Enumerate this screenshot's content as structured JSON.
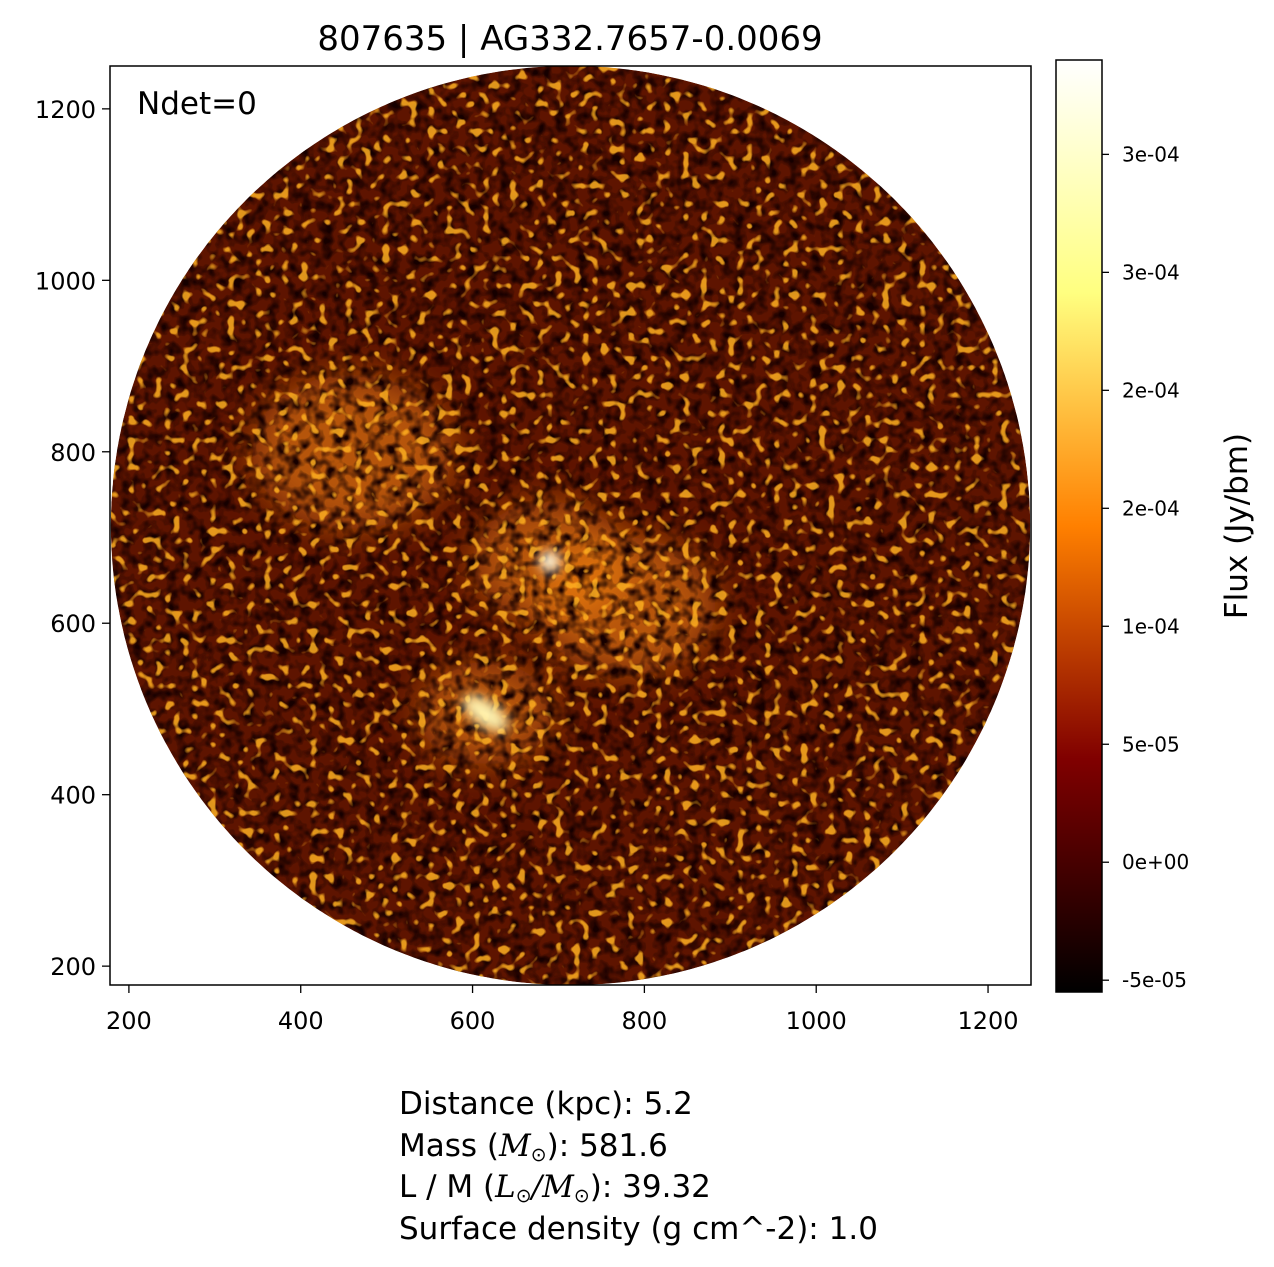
{
  "chart_data": {
    "type": "heatmap",
    "title": "807635 | AG332.7657-0.0069",
    "annotation": "Ndet=0",
    "x_ticks": [
      200,
      400,
      600,
      800,
      1000,
      1200
    ],
    "y_ticks": [
      200,
      400,
      600,
      800,
      1000,
      1200
    ],
    "xlim": [
      178,
      1250
    ],
    "ylim": [
      178,
      1250
    ],
    "colorbar": {
      "label": "Flux (Jy/bm)",
      "colormap": "afmhot",
      "range": [
        -5.5e-05,
        0.00034
      ],
      "ticks": [
        {
          "value": -5e-05,
          "label": "-5e-05"
        },
        {
          "value": 0.0,
          "label": "0e+00"
        },
        {
          "value": 5e-05,
          "label": "5e-05"
        },
        {
          "value": 0.0001,
          "label": "1e-04"
        },
        {
          "value": 0.00015,
          "label": "2e-04"
        },
        {
          "value": 0.0002,
          "label": "2e-04"
        },
        {
          "value": 0.00025,
          "label": "3e-04"
        },
        {
          "value": 0.0003,
          "label": "3e-04"
        }
      ]
    },
    "field": {
      "shape": "circle",
      "center": [
        714,
        714
      ],
      "radius": 535
    },
    "emission_features": [
      {
        "x": 690,
        "y": 672,
        "desc": "bright compact peak"
      },
      {
        "x": 615,
        "y": 495,
        "desc": "bright arc"
      },
      {
        "x": 460,
        "y": 800,
        "desc": "extended emission"
      },
      {
        "x": 780,
        "y": 620,
        "desc": "extended emission"
      }
    ]
  },
  "info": {
    "distance": "Distance (kpc): 5.2",
    "mass_prefix": "Mass (",
    "mass_symbol": "M",
    "mass_suffix": "): 581.6",
    "lm_prefix": "L / M (",
    "lm_symbol_l": "L",
    "lm_slash": "/",
    "lm_symbol_m": "M",
    "lm_suffix": "): 39.32",
    "surface_density": "Surface density (g cm^-2): 1.0",
    "sun_symbol": "⊙"
  }
}
